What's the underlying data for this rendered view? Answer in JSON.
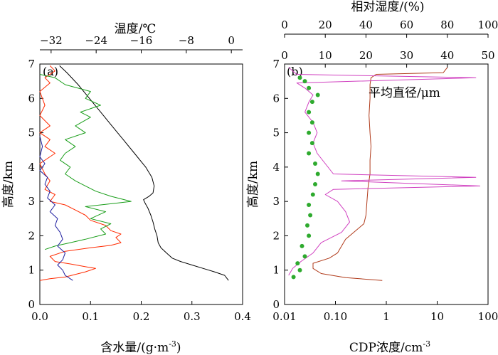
{
  "chart_data": [
    {
      "type": "line",
      "panel_label": "(a)",
      "xlabel": "含水量/(g·m⁻³)",
      "xlabel_main": "含水量/(g",
      "xlabel_dot": "·",
      "xlabel_m": "m",
      "xlabel_sup": "-3",
      "xlabel_close": ")",
      "xlim": [
        0,
        0.4
      ],
      "xticks": [
        "0.0",
        "0.1",
        "0.2",
        "0.3",
        "0.4"
      ],
      "x2label": "温度/℃",
      "x2lim": [
        -34,
        2
      ],
      "x2ticks": [
        "−32",
        "−24",
        "−16",
        "−8",
        "0"
      ],
      "ylabel": "高度/km",
      "ylim": [
        0,
        7
      ],
      "yticks": [
        "0",
        "1",
        "2",
        "3",
        "4",
        "5",
        "6",
        "7"
      ],
      "series": [
        {
          "axis": "temperature",
          "color": "#000000",
          "points": [
            [
              -0.5,
              0.7
            ],
            [
              -1.2,
              0.85
            ],
            [
              -3,
              0.95
            ],
            [
              -5,
              1.05
            ],
            [
              -7,
              1.15
            ],
            [
              -9,
              1.25
            ],
            [
              -10.5,
              1.35
            ],
            [
              -11.5,
              1.5
            ],
            [
              -12.5,
              1.65
            ],
            [
              -13,
              1.8
            ],
            [
              -13.2,
              2.0
            ],
            [
              -13.6,
              2.2
            ],
            [
              -13.9,
              2.4
            ],
            [
              -14.3,
              2.6
            ],
            [
              -14.8,
              2.8
            ],
            [
              -15.3,
              2.95
            ],
            [
              -15.6,
              3.05
            ],
            [
              -14.6,
              3.15
            ],
            [
              -13.9,
              3.25
            ],
            [
              -13.7,
              3.45
            ],
            [
              -14.1,
              3.7
            ],
            [
              -15.2,
              4.0
            ],
            [
              -17.2,
              4.4
            ],
            [
              -19.2,
              4.8
            ],
            [
              -21.2,
              5.2
            ],
            [
              -23.2,
              5.6
            ],
            [
              -25.2,
              6.0
            ],
            [
              -27.2,
              6.4
            ],
            [
              -29.2,
              6.75
            ],
            [
              -30.5,
              6.95
            ]
          ]
        },
        {
          "axis": "lwc",
          "color": "#ff2a00",
          "points": [
            [
              0.0,
              0.7
            ],
            [
              0.02,
              0.75
            ],
            [
              0.05,
              0.8
            ],
            [
              0.09,
              0.95
            ],
            [
              0.11,
              1.05
            ],
            [
              0.09,
              1.1
            ],
            [
              0.06,
              1.18
            ],
            [
              0.03,
              1.25
            ],
            [
              0.02,
              1.4
            ],
            [
              0.05,
              1.55
            ],
            [
              0.1,
              1.65
            ],
            [
              0.14,
              1.72
            ],
            [
              0.16,
              1.8
            ],
            [
              0.15,
              1.95
            ],
            [
              0.16,
              2.05
            ],
            [
              0.14,
              2.15
            ],
            [
              0.13,
              2.3
            ],
            [
              0.1,
              2.45
            ],
            [
              0.09,
              2.6
            ],
            [
              0.07,
              2.75
            ],
            [
              0.05,
              2.9
            ],
            [
              0.02,
              3.0
            ],
            [
              0.03,
              3.2
            ],
            [
              0.01,
              3.35
            ],
            [
              0.02,
              3.6
            ],
            [
              0.01,
              3.8
            ],
            [
              0.0,
              4.1
            ],
            [
              0.03,
              4.4
            ],
            [
              0.01,
              4.6
            ],
            [
              0.02,
              4.8
            ],
            [
              0.0,
              5.0
            ],
            [
              0.02,
              5.2
            ],
            [
              0.0,
              5.5
            ],
            [
              0.01,
              5.8
            ],
            [
              0.0,
              6.2
            ],
            [
              0.02,
              6.45
            ],
            [
              0.01,
              6.6
            ],
            [
              0.03,
              6.8
            ],
            [
              0.02,
              6.95
            ]
          ]
        },
        {
          "axis": "lwc",
          "color": "#1a9e1a",
          "points": [
            [
              0.01,
              1.6
            ],
            [
              0.03,
              1.7
            ],
            [
              0.06,
              1.8
            ],
            [
              0.09,
              1.9
            ],
            [
              0.13,
              2.05
            ],
            [
              0.12,
              2.2
            ],
            [
              0.14,
              2.35
            ],
            [
              0.1,
              2.5
            ],
            [
              0.13,
              2.7
            ],
            [
              0.09,
              2.85
            ],
            [
              0.15,
              2.95
            ],
            [
              0.18,
              3.0
            ],
            [
              0.14,
              3.15
            ],
            [
              0.11,
              3.3
            ],
            [
              0.09,
              3.45
            ],
            [
              0.07,
              3.6
            ],
            [
              0.05,
              3.8
            ],
            [
              0.06,
              4.0
            ],
            [
              0.04,
              4.2
            ],
            [
              0.05,
              4.4
            ],
            [
              0.07,
              4.6
            ],
            [
              0.05,
              4.8
            ],
            [
              0.09,
              5.0
            ],
            [
              0.07,
              5.2
            ],
            [
              0.1,
              5.45
            ],
            [
              0.08,
              5.6
            ],
            [
              0.12,
              5.8
            ],
            [
              0.09,
              6.0
            ],
            [
              0.1,
              6.2
            ],
            [
              0.05,
              6.4
            ],
            [
              0.03,
              6.6
            ],
            [
              0.0,
              6.7
            ]
          ]
        },
        {
          "axis": "lwc",
          "color": "#2020a0",
          "points": [
            [
              0.065,
              0.7
            ],
            [
              0.05,
              0.85
            ],
            [
              0.045,
              1.0
            ],
            [
              0.035,
              1.15
            ],
            [
              0.045,
              1.3
            ],
            [
              0.05,
              1.5
            ],
            [
              0.035,
              1.7
            ],
            [
              0.045,
              1.9
            ],
            [
              0.04,
              2.1
            ],
            [
              0.03,
              2.3
            ],
            [
              0.035,
              2.5
            ],
            [
              0.02,
              2.7
            ],
            [
              0.03,
              2.9
            ],
            [
              0.015,
              3.1
            ],
            [
              0.02,
              3.3
            ],
            [
              0.01,
              3.5
            ],
            [
              0.015,
              3.7
            ],
            [
              0.0,
              3.9
            ],
            [
              0.01,
              4.1
            ],
            [
              0.0,
              4.3
            ],
            [
              0.005,
              4.6
            ],
            [
              0.0,
              4.9
            ]
          ]
        }
      ]
    },
    {
      "type": "line",
      "panel_label": "(b)",
      "xlabel": "CDP浓度/cm⁻³",
      "xlabel_main": "CDP浓度/cm",
      "xlabel_sup": "-3",
      "xscale": "log",
      "xlim": [
        0.01,
        100
      ],
      "xticks": [
        "0.01",
        "0.10",
        "1",
        "10",
        "100"
      ],
      "x2label": "相对湿度/(%)",
      "x2lim": [
        0,
        100
      ],
      "x2ticks": [
        "0",
        "20",
        "40",
        "60",
        "80",
        "100"
      ],
      "x3lim": [
        0,
        50
      ],
      "x3ticks": [
        "0",
        "10",
        "20",
        "30",
        "40",
        "50"
      ],
      "annotation": "平均直径/μm",
      "ylabel": "高度/km",
      "ylim": [
        0,
        7
      ],
      "yticks": [
        "0",
        "1",
        "2",
        "3",
        "4",
        "5",
        "6",
        "7"
      ],
      "series": [
        {
          "axis": "relative_humidity",
          "color": "#b03a1a",
          "points": [
            [
              48,
              0.7
            ],
            [
              30,
              0.78
            ],
            [
              18,
              0.9
            ],
            [
              14,
              1.05
            ],
            [
              14,
              1.2
            ],
            [
              22,
              1.35
            ],
            [
              26,
              1.5
            ],
            [
              28,
              1.7
            ],
            [
              30,
              1.9
            ],
            [
              34,
              2.1
            ],
            [
              39,
              2.35
            ],
            [
              40,
              2.6
            ],
            [
              40.5,
              3.0
            ],
            [
              41,
              3.4
            ],
            [
              42,
              3.8
            ],
            [
              42,
              4.2
            ],
            [
              42.5,
              4.6
            ],
            [
              42,
              5.0
            ],
            [
              41.5,
              5.5
            ],
            [
              42,
              6.0
            ],
            [
              42,
              6.4
            ],
            [
              42.5,
              6.6
            ],
            [
              45,
              6.7
            ],
            [
              78,
              6.75
            ],
            [
              80,
              6.9
            ]
          ]
        },
        {
          "axis": "mean_diameter",
          "color": "#d040c0",
          "points": [
            [
              1,
              0.85
            ],
            [
              2,
              1.05
            ],
            [
              4,
              1.25
            ],
            [
              7,
              1.5
            ],
            [
              9,
              1.8
            ],
            [
              14,
              2.1
            ],
            [
              16,
              2.4
            ],
            [
              15,
              2.7
            ],
            [
              13,
              3.0
            ],
            [
              10,
              3.2
            ],
            [
              12,
              3.35
            ],
            [
              48,
              3.45
            ],
            [
              14,
              3.6
            ],
            [
              47,
              3.7
            ],
            [
              12,
              3.8
            ],
            [
              10,
              4.1
            ],
            [
              8,
              4.4
            ],
            [
              7,
              4.7
            ],
            [
              8,
              5.0
            ],
            [
              7,
              5.3
            ],
            [
              5,
              5.6
            ],
            [
              6,
              5.9
            ],
            [
              7,
              6.1
            ],
            [
              5,
              6.3
            ],
            [
              3,
              6.45
            ],
            [
              47,
              6.6
            ],
            [
              3,
              6.7
            ],
            [
              1,
              6.9
            ]
          ]
        },
        {
          "axis": "cdp",
          "color": "#2eaa2e",
          "points": [
            [
              0.015,
              0.8
            ],
            [
              0.02,
              1.0
            ],
            [
              0.018,
              1.2
            ],
            [
              0.025,
              1.4
            ],
            [
              0.022,
              1.7
            ],
            [
              0.03,
              2.0
            ],
            [
              0.028,
              2.3
            ],
            [
              0.032,
              2.6
            ],
            [
              0.03,
              2.9
            ],
            [
              0.036,
              3.2
            ],
            [
              0.04,
              3.5
            ],
            [
              0.045,
              3.8
            ],
            [
              0.04,
              4.1
            ],
            [
              0.03,
              4.4
            ],
            [
              0.035,
              4.7
            ],
            [
              0.03,
              5.0
            ],
            [
              0.035,
              5.3
            ],
            [
              0.03,
              5.6
            ],
            [
              0.035,
              5.9
            ],
            [
              0.045,
              6.1
            ],
            [
              0.03,
              6.3
            ],
            [
              0.025,
              6.5
            ],
            [
              0.02,
              6.6
            ]
          ]
        }
      ]
    }
  ]
}
